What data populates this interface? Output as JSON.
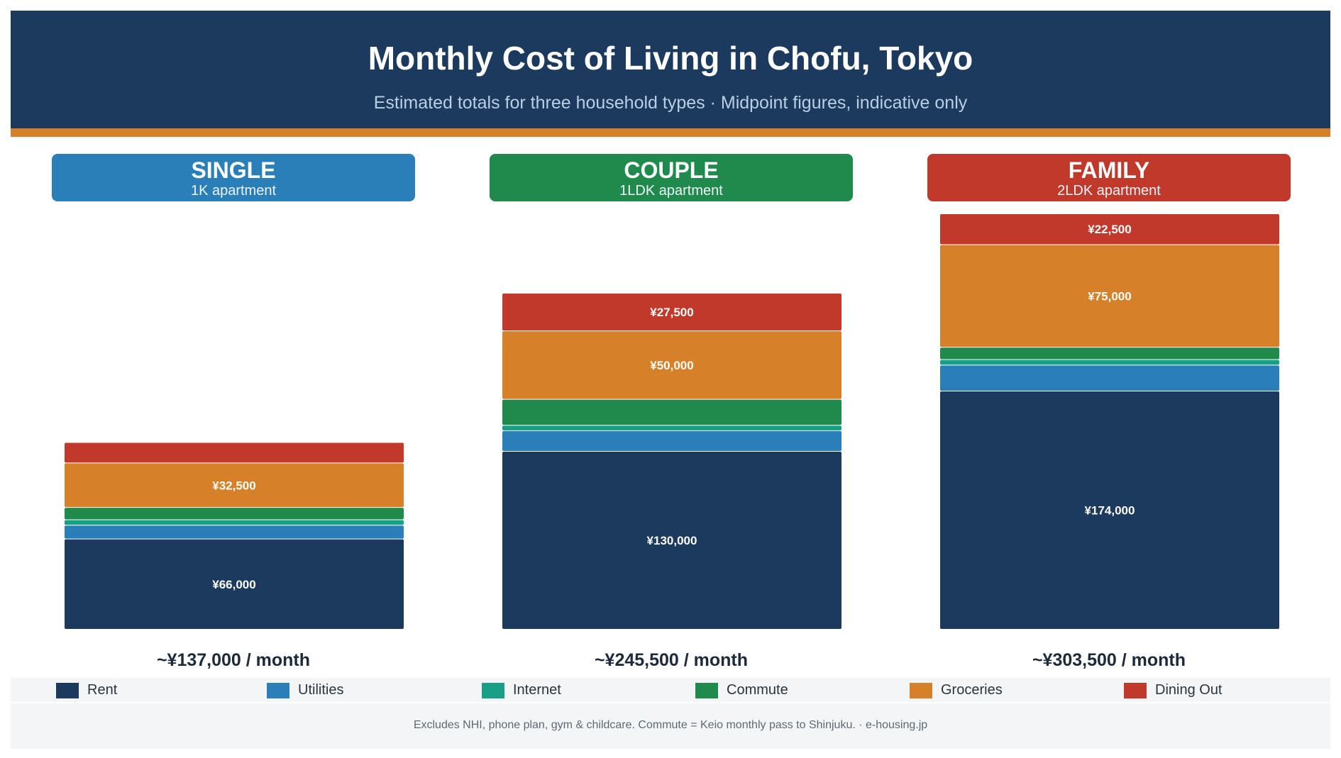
{
  "header": {
    "title": "Monthly Cost of Living in Chofu, Tokyo",
    "subtitle": "Estimated totals for three household types  ·  Midpoint figures, indicative only"
  },
  "groups": [
    {
      "name": "SINGLE",
      "sub": "1K apartment",
      "color": "#2a7fb8",
      "total": "~¥137,000 / month"
    },
    {
      "name": "COUPLE",
      "sub": "1LDK apartment",
      "color": "#1f8a4c",
      "total": "~¥245,500 / month"
    },
    {
      "name": "FAMILY",
      "sub": "2LDK apartment",
      "color": "#c0392b",
      "total": "~¥303,500 / month"
    }
  ],
  "legend": [
    {
      "label": "Rent",
      "color": "#1c3a5e"
    },
    {
      "label": "Utilities",
      "color": "#2a7fb8"
    },
    {
      "label": "Internet",
      "color": "#17a085"
    },
    {
      "label": "Commute",
      "color": "#1f8a4c"
    },
    {
      "label": "Groceries",
      "color": "#d68029"
    },
    {
      "label": "Dining Out",
      "color": "#c0392b"
    }
  ],
  "chart_data": {
    "type": "bar",
    "stacked": true,
    "categories": [
      "SINGLE",
      "COUPLE",
      "FAMILY"
    ],
    "series": [
      {
        "name": "Rent",
        "values": [
          66000,
          130000,
          174000
        ]
      },
      {
        "name": "Utilities",
        "values": [
          10000,
          15000,
          19000
        ]
      },
      {
        "name": "Internet",
        "values": [
          4000,
          4000,
          4000
        ]
      },
      {
        "name": "Commute",
        "values": [
          9000,
          19000,
          9000
        ]
      },
      {
        "name": "Groceries",
        "values": [
          32500,
          50000,
          75000
        ]
      },
      {
        "name": "Dining Out",
        "values": [
          15000,
          27500,
          22500
        ]
      }
    ],
    "value_labels": [
      [
        "¥66,000",
        "",
        "",
        "",
        "¥32,500",
        ""
      ],
      [
        "¥130,000",
        "",
        "",
        "",
        "¥50,000",
        "¥27,500"
      ],
      [
        "¥174,000",
        "",
        "",
        "",
        "¥75,000",
        "¥22,500"
      ]
    ],
    "ylim": [
      0,
      303500
    ]
  },
  "footer": {
    "note": "Excludes NHI, phone plan, gym & childcare. Commute = Keio monthly pass to Shinjuku.  ·  e-housing.jp"
  }
}
